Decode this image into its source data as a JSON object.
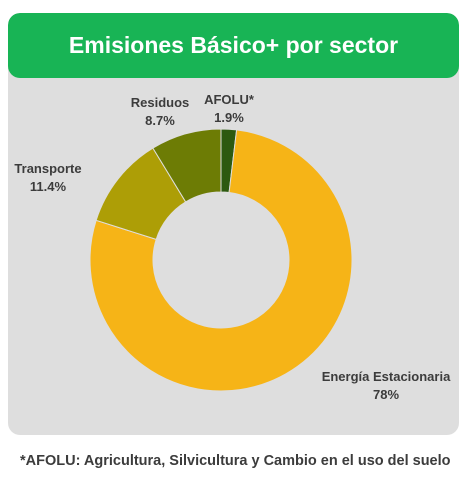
{
  "header": {
    "title": "Emisiones Básico+ por sector"
  },
  "chart_data": {
    "type": "pie",
    "title": "Emisiones Básico+ por sector",
    "donut": true,
    "categories": [
      "AFOLU*",
      "Energía Estacionaria",
      "Transporte",
      "Residuos"
    ],
    "values": [
      1.9,
      78,
      11.4,
      8.7
    ],
    "value_labels": [
      "1.9%",
      "78%",
      "11.4%",
      "8.7%"
    ],
    "colors": [
      "#2d5a10",
      "#f6b417",
      "#ad9e06",
      "#6d7c05"
    ],
    "legend": "none"
  },
  "footnote": "*AFOLU: Agricultura, Silvicultura y Cambio en el uso del suelo"
}
